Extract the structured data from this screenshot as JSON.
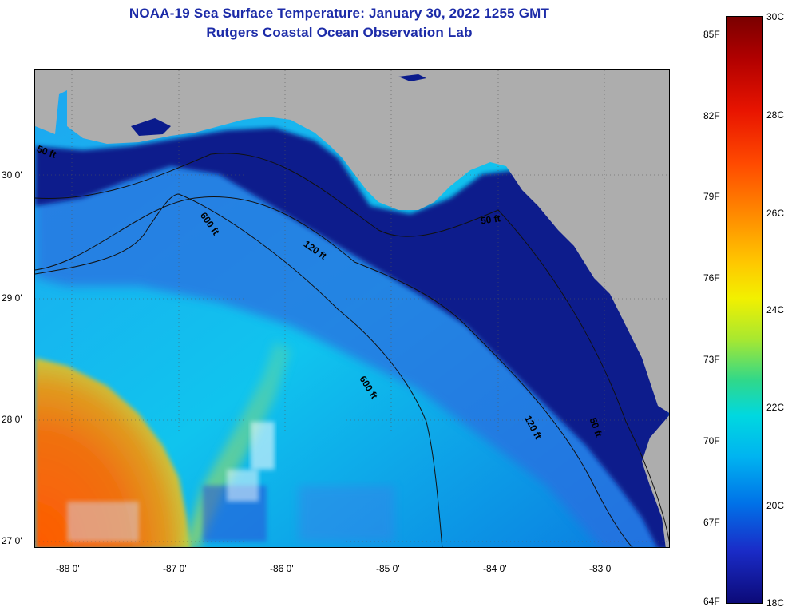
{
  "title_line1": "NOAA-19 Sea Surface Temperature:  January 30, 2022 1255 GMT",
  "title_line2": "Rutgers Coastal Ocean Observation Lab",
  "latitude_labels": [
    "30 0'",
    "29 0'",
    "28 0'",
    "27 0'"
  ],
  "longitude_labels": [
    "-88 0'",
    "-87 0'",
    "-86 0'",
    "-85 0'",
    "-84 0'",
    "-83 0'"
  ],
  "contour_labels": {
    "fifty_a": "50 ft",
    "fifty_b": "50 ft",
    "fifty_c": "50 ft",
    "onetwenty_a": "120 ft",
    "onetwenty_b": "120 ft",
    "sixhundred_a": "600 ft",
    "sixhundred_b": "600 ft"
  },
  "colorbar": {
    "fahrenheit": [
      "85F",
      "82F",
      "79F",
      "76F",
      "73F",
      "70F",
      "67F",
      "64F"
    ],
    "celsius": [
      "30C",
      "28C",
      "26C",
      "24C",
      "22C",
      "20C",
      "18C"
    ]
  },
  "colors": {
    "land": "#adadad",
    "cold_shelf": "#0a1b8c",
    "warm_core": "#f05a0a",
    "title": "#1c2ba8"
  }
}
